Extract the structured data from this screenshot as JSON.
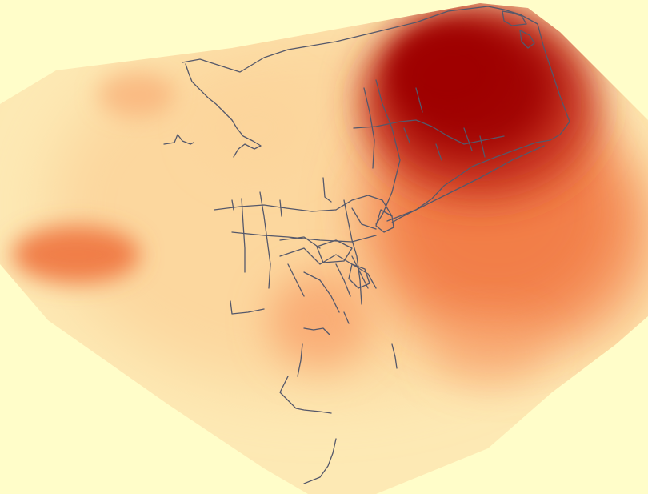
{
  "map": {
    "type": "density-heatmap-with-network",
    "colors": {
      "background": "#FFFDC9",
      "low": "#FDE9B4",
      "mid_low": "#FCD39A",
      "mid": "#F8A068",
      "mid_high": "#F0743F",
      "high": "#C8301C",
      "peak": "#9E0606",
      "network_line": "#55586A"
    },
    "hotspots": [
      {
        "label": "dense-northeast-core",
        "intensity": 1.0
      },
      {
        "label": "east-lobe",
        "intensity": 0.7
      },
      {
        "label": "west-cluster",
        "intensity": 0.55
      },
      {
        "label": "central-south-cluster",
        "intensity": 0.45
      },
      {
        "label": "northwest-patch",
        "intensity": 0.3
      }
    ],
    "network_icon": "line-network"
  }
}
